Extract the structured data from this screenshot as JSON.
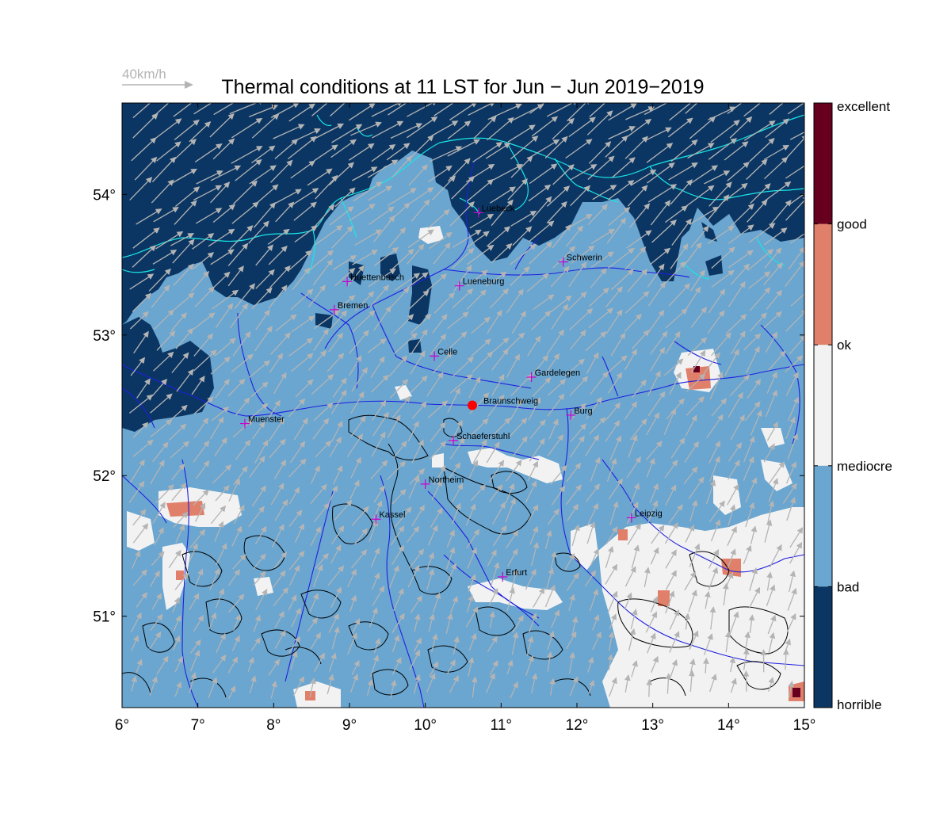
{
  "figure": {
    "title": "Thermal conditions at 11 LST for Jun − Jun  2019−2019",
    "wind_scale_label": "40km/h"
  },
  "map": {
    "lon_ticks": [
      "6°",
      "7°",
      "8°",
      "9°",
      "10°",
      "11°",
      "12°",
      "13°",
      "14°",
      "15°"
    ],
    "lat_ticks": [
      "51°",
      "52°",
      "53°",
      "54°"
    ],
    "lon_range": [
      6,
      15
    ],
    "lat_range": [
      50.35,
      54.65
    ],
    "highlight_marker": {
      "name": "Braunschweig",
      "color": "#ff0000"
    },
    "cities": [
      {
        "name": "Luebeck",
        "lon": 10.7,
        "lat": 53.87
      },
      {
        "name": "Schwerin",
        "lon": 11.82,
        "lat": 53.52
      },
      {
        "name": "Huettenbusch",
        "lon": 8.97,
        "lat": 53.38
      },
      {
        "name": "Lueneburg",
        "lon": 10.45,
        "lat": 53.35
      },
      {
        "name": "Bremen",
        "lon": 8.8,
        "lat": 53.18
      },
      {
        "name": "Celle",
        "lon": 10.12,
        "lat": 52.85
      },
      {
        "name": "Gardelegen",
        "lon": 11.4,
        "lat": 52.7
      },
      {
        "name": "Braunschweig",
        "lon": 10.62,
        "lat": 52.5
      },
      {
        "name": "Burg",
        "lon": 11.92,
        "lat": 52.43
      },
      {
        "name": "Muenster",
        "lon": 7.62,
        "lat": 52.37
      },
      {
        "name": "Schaeferstuhl",
        "lon": 10.37,
        "lat": 52.25
      },
      {
        "name": "Northeim",
        "lon": 10.0,
        "lat": 51.94
      },
      {
        "name": "Kassel",
        "lon": 9.35,
        "lat": 51.69
      },
      {
        "name": "Leipzig",
        "lon": 12.72,
        "lat": 51.7
      },
      {
        "name": "Erfurt",
        "lon": 11.02,
        "lat": 51.28
      }
    ]
  },
  "legend": {
    "classes": [
      {
        "label": "excellent",
        "color": "#67001f"
      },
      {
        "label": "good",
        "color": "#d6604d"
      },
      {
        "label": "ok",
        "color": "#f4a582"
      },
      {
        "label": "mediocre",
        "color": "#f0f0f0"
      },
      {
        "label": "bad",
        "color": "#67a9cf"
      },
      {
        "label": "horrible",
        "color": "#053061"
      }
    ],
    "band_colors": [
      "#67001f",
      "#e0806a",
      "#f2f2f2",
      "#6aa6d0",
      "#0b3663"
    ]
  },
  "colors": {
    "horrible": "#0b3663",
    "bad": "#6aa6d0",
    "mediocre": "#f2f2f2",
    "ok": "#e0806a",
    "excellent": "#67001f",
    "coast": "#19e6e6",
    "rivers": "#1f1fdf",
    "relief": "#000000",
    "wind_arrows": "#b4b4b4",
    "city_marker": "#cc00cc"
  }
}
